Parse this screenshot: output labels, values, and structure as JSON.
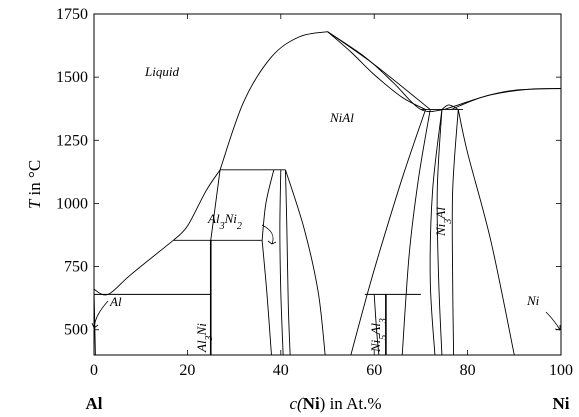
{
  "chart_data": {
    "type": "phase-diagram",
    "title": "",
    "xlabel_parts": [
      "c(",
      "Ni",
      ") in At.%"
    ],
    "ylabel_parts": [
      "T",
      " in °C"
    ],
    "xlim": [
      0,
      100
    ],
    "ylim": [
      400,
      1750
    ],
    "x_ticks": [
      0,
      20,
      40,
      60,
      80,
      100
    ],
    "y_ticks": [
      500,
      750,
      1000,
      1250,
      1500,
      1750
    ],
    "grid": false,
    "endpoint_labels": {
      "left": "Al",
      "right": "Ni"
    },
    "phase_labels": {
      "liquid": "Liquid",
      "nial": "NiAl",
      "ni3al": [
        "Ni",
        "3",
        "Al"
      ],
      "al3ni2": [
        "Al",
        "3",
        "Ni",
        "2"
      ],
      "al3ni": [
        "Al",
        "3",
        "Ni"
      ],
      "ni5al3": [
        "Ni",
        "5",
        "Al",
        "3"
      ],
      "al": "Al",
      "ni": "Ni"
    },
    "boundaries": [
      {
        "name": "al-liquidus",
        "points": [
          [
            0,
            660
          ],
          [
            3,
            640
          ],
          [
            8,
            720
          ],
          [
            17,
            854
          ]
        ]
      },
      {
        "name": "al3ni2-liquidus",
        "points": [
          [
            17,
            854
          ],
          [
            20,
            910
          ],
          [
            24,
            1050
          ],
          [
            27,
            1133
          ]
        ]
      },
      {
        "name": "nial-liquidus-left",
        "points": [
          [
            27,
            1133
          ],
          [
            32,
            1400
          ],
          [
            38,
            1580
          ],
          [
            44,
            1660
          ],
          [
            50,
            1680
          ]
        ]
      },
      {
        "name": "nial-liquidus-right",
        "points": [
          [
            50,
            1680
          ],
          [
            58,
            1580
          ],
          [
            64,
            1480
          ],
          [
            70,
            1372
          ],
          [
            75,
            1372
          ]
        ]
      },
      {
        "name": "ni-liquidus",
        "points": [
          [
            75,
            1372
          ],
          [
            78,
            1390
          ],
          [
            85,
            1430
          ],
          [
            93,
            1452
          ],
          [
            100,
            1455
          ]
        ]
      },
      {
        "name": "nial-solidus-a",
        "points": [
          [
            50,
            1680
          ],
          [
            55,
            1600
          ],
          [
            60,
            1510
          ],
          [
            66,
            1420
          ],
          [
            71,
            1372
          ]
        ]
      },
      {
        "name": "nial-solidus-b",
        "points": [
          [
            50,
            1680
          ],
          [
            60,
            1550
          ],
          [
            72,
            1372
          ]
        ]
      },
      {
        "name": "ni-solidus",
        "points": [
          [
            76.5,
            1372
          ],
          [
            83,
            1420
          ],
          [
            90,
            1448
          ],
          [
            100,
            1455
          ]
        ]
      },
      {
        "name": "ni3al-left-top",
        "points": [
          [
            74.5,
            1372
          ],
          [
            76,
            1390
          ],
          [
            78,
            1372
          ]
        ]
      },
      {
        "name": "al3ni2-right-a",
        "points": [
          [
            36,
            854
          ],
          [
            37,
            650
          ],
          [
            38,
            400
          ]
        ]
      },
      {
        "name": "al3ni2-right-b",
        "points": [
          [
            36,
            854
          ],
          [
            36.8,
            1000
          ],
          [
            38.5,
            1133
          ]
        ]
      },
      {
        "name": "al3ni2-left",
        "points": [
          [
            25,
            854
          ],
          [
            27,
            1133
          ]
        ]
      },
      {
        "name": "nial-left-solvus-a",
        "points": [
          [
            40,
            1133
          ],
          [
            39.8,
            900
          ],
          [
            40,
            650
          ],
          [
            40.5,
            400
          ]
        ]
      },
      {
        "name": "nial-left-solvus-b",
        "points": [
          [
            41,
            1133
          ],
          [
            41.3,
            900
          ],
          [
            41.6,
            600
          ],
          [
            42,
            400
          ]
        ]
      },
      {
        "name": "nial-left-solvus-c",
        "points": [
          [
            41,
            1133
          ],
          [
            45,
            900
          ],
          [
            48,
            650
          ],
          [
            49.5,
            400
          ]
        ]
      },
      {
        "name": "nial-right-solvus-a",
        "points": [
          [
            71,
            1372
          ],
          [
            66,
            1100
          ],
          [
            61,
            800
          ],
          [
            58.5,
            640
          ],
          [
            55,
            400
          ]
        ]
      },
      {
        "name": "nial-right-solvus-b",
        "points": [
          [
            72,
            1372
          ],
          [
            69.5,
            1100
          ],
          [
            67.5,
            800
          ],
          [
            66,
            400
          ]
        ]
      },
      {
        "name": "ni5al3-left",
        "points": [
          [
            60,
            640
          ],
          [
            60.5,
            500
          ],
          [
            61,
            400
          ]
        ]
      },
      {
        "name": "ni3al-left-a",
        "points": [
          [
            74.5,
            1372
          ],
          [
            72.5,
            1050
          ],
          [
            72,
            700
          ],
          [
            73,
            400
          ]
        ]
      },
      {
        "name": "ni3al-left-b",
        "points": [
          [
            74.5,
            1372
          ],
          [
            73.5,
            1050
          ],
          [
            73.8,
            700
          ],
          [
            74.5,
            400
          ]
        ]
      },
      {
        "name": "ni3al-right-a",
        "points": [
          [
            78,
            1372
          ],
          [
            76.8,
            1050
          ],
          [
            76.8,
            700
          ],
          [
            77,
            400
          ]
        ]
      },
      {
        "name": "ni3al-right-b",
        "points": [
          [
            78,
            1372
          ],
          [
            80,
            1200
          ],
          [
            85,
            850
          ],
          [
            90,
            400
          ]
        ]
      },
      {
        "name": "al-solvus",
        "points": [
          [
            0,
            660
          ],
          [
            0.3,
            400
          ]
        ]
      }
    ],
    "tie_lines": [
      {
        "points": [
          [
            0,
            640
          ],
          [
            25,
            640
          ]
        ]
      },
      {
        "points": [
          [
            17,
            854
          ],
          [
            36,
            854
          ]
        ]
      },
      {
        "points": [
          [
            27,
            1133
          ],
          [
            41,
            1133
          ]
        ]
      },
      {
        "points": [
          [
            58,
            640
          ],
          [
            70,
            640
          ]
        ]
      },
      {
        "points": [
          [
            70,
            1372
          ],
          [
            79,
            1372
          ]
        ]
      }
    ],
    "compound_lines": [
      {
        "points": [
          [
            25,
            400
          ],
          [
            25,
            854
          ]
        ]
      },
      {
        "points": [
          [
            62.5,
            400
          ],
          [
            62.5,
            640
          ]
        ]
      }
    ]
  }
}
